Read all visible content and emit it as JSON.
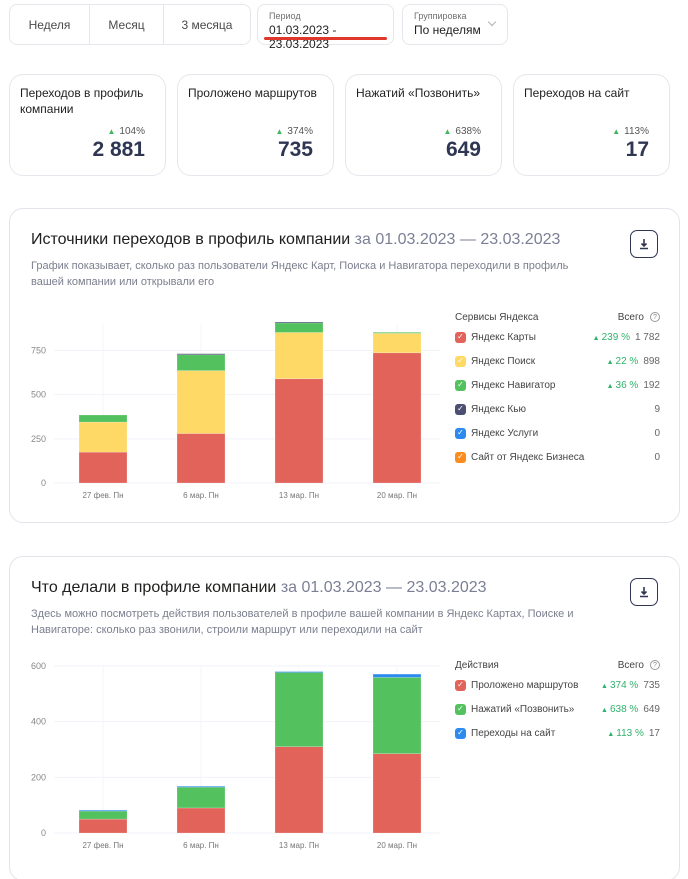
{
  "filters": {
    "periods": [
      "Неделя",
      "Месяц",
      "3 месяца"
    ],
    "period_field": {
      "label": "Период",
      "value": "01.03.2023 - 23.03.2023"
    },
    "grouping_field": {
      "label": "Группировка",
      "value": "По неделям"
    }
  },
  "metrics": [
    {
      "title": "Переходов в профиль компании",
      "change": "104%",
      "value": "2 881"
    },
    {
      "title": "Проложено маршрутов",
      "change": "374%",
      "value": "735"
    },
    {
      "title": "Нажатий «Позвонить»",
      "change": "638%",
      "value": "649"
    },
    {
      "title": "Переходов на сайт",
      "change": "113%",
      "value": "17"
    }
  ],
  "sources_card": {
    "title": "Источники переходов в профиль компании",
    "dates": "за 01.03.2023 — 23.03.2023",
    "description": "График показывает, сколько раз пользователи Яндекс Карт, Поиска и Навигатора переходили в профиль вашей компании или открывали его",
    "legend_header": "Сервисы Яндекса",
    "total_header": "Всего",
    "legend": [
      {
        "name": "Яндекс Карты",
        "color": "#e2635a",
        "change": "239 %",
        "total": "1 782"
      },
      {
        "name": "Яндекс Поиск",
        "color": "#ffd966",
        "change": "22 %",
        "total": "898"
      },
      {
        "name": "Яндекс Навигатор",
        "color": "#52c15e",
        "change": "36 %",
        "total": "192"
      },
      {
        "name": "Яндекс Кью",
        "color": "#4b5072",
        "change": "",
        "total": "9"
      },
      {
        "name": "Яндекс Услуги",
        "color": "#2d8bf0",
        "change": "",
        "total": "0"
      },
      {
        "name": "Сайт от Яндекс Бизнеса",
        "color": "#fb8c1e",
        "change": "",
        "total": "0"
      }
    ]
  },
  "actions_card": {
    "title": "Что делали в профиле компании",
    "dates": "за 01.03.2023 — 23.03.2023",
    "description": "Здесь можно посмотреть действия пользователей в профиле вашей компании в Яндекс Картах, Поиске и Навигаторе: сколько раз звонили, строили маршрут или переходили на сайт",
    "legend_header": "Действия",
    "total_header": "Всего",
    "legend": [
      {
        "name": "Проложено маршрутов",
        "color": "#e2635a",
        "change": "374 %",
        "total": "735"
      },
      {
        "name": "Нажатий «Позвонить»",
        "color": "#52c15e",
        "change": "638 %",
        "total": "649"
      },
      {
        "name": "Переходы на сайт",
        "color": "#2d8bf0",
        "change": "113 %",
        "total": "17"
      }
    ]
  },
  "chart_data": [
    {
      "type": "bar",
      "stacked": true,
      "title": "Источники переходов в профиль компании",
      "categories": [
        "27 фев. Пн",
        "6 мар. Пн",
        "13 мар. Пн",
        "20 мар. Пн"
      ],
      "yticks": [
        0,
        250,
        500,
        750
      ],
      "ylim": [
        0,
        900
      ],
      "grid": true,
      "legend": "right",
      "series": [
        {
          "name": "Яндекс Карты",
          "color": "#e2635a",
          "values": [
            175,
            280,
            590,
            737
          ]
        },
        {
          "name": "Яндекс Поиск",
          "color": "#ffd966",
          "values": [
            170,
            356,
            262,
            110
          ]
        },
        {
          "name": "Яндекс Навигатор",
          "color": "#52c15e",
          "values": [
            40,
            90,
            56,
            6
          ]
        },
        {
          "name": "Яндекс Кью",
          "color": "#4b5072",
          "values": [
            0,
            6,
            3,
            0
          ]
        },
        {
          "name": "Яндекс Услуги",
          "color": "#2d8bf0",
          "values": [
            0,
            0,
            0,
            0
          ]
        },
        {
          "name": "Сайт от Яндекс Бизнеса",
          "color": "#fb8c1e",
          "values": [
            0,
            0,
            0,
            0
          ]
        }
      ]
    },
    {
      "type": "bar",
      "stacked": true,
      "title": "Что делали в профиле компании",
      "categories": [
        "27 фев. Пн",
        "6 мар. Пн",
        "13 мар. Пн",
        "20 мар. Пн"
      ],
      "yticks": [
        0,
        200,
        400,
        600
      ],
      "ylim": [
        0,
        600
      ],
      "grid": true,
      "legend": "right",
      "series": [
        {
          "name": "Проложено маршрутов",
          "color": "#e2635a",
          "values": [
            50,
            90,
            310,
            285
          ]
        },
        {
          "name": "Нажатий «Позвонить»",
          "color": "#52c15e",
          "values": [
            30,
            76,
            269,
            274
          ]
        },
        {
          "name": "Переходы на сайт",
          "color": "#2d8bf0",
          "values": [
            2,
            2,
            1,
            12
          ]
        }
      ]
    }
  ]
}
